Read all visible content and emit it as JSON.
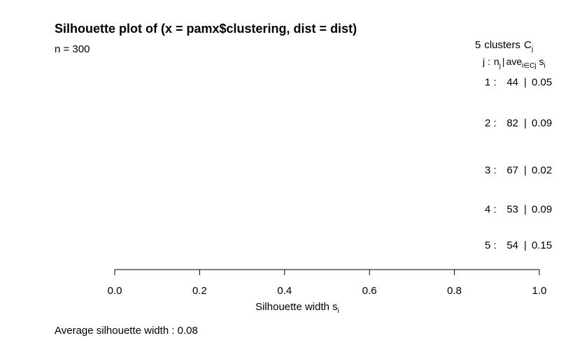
{
  "chart_data": {
    "type": "bar",
    "title": "Silhouette plot of (x = pamx$clustering, dist = dist)",
    "n_label": "n = 300",
    "legend_header": {
      "count": "5",
      "clusters_word": "clusters",
      "c_symbol": "C",
      "c_subscript": "j",
      "j_label": "j :",
      "n_symbol": "n",
      "n_subscript": "j",
      "sep": "|",
      "ave_symbol": "ave",
      "ave_subscript": "i∈Cj",
      "s_symbol": "s",
      "s_subscript": "i"
    },
    "clusters": [
      {
        "index": "1 :",
        "size": "44",
        "sep": "|",
        "avg": "0.05"
      },
      {
        "index": "2 :",
        "size": "82",
        "sep": "|",
        "avg": "0.09"
      },
      {
        "index": "3 :",
        "size": "67",
        "sep": "|",
        "avg": "0.02"
      },
      {
        "index": "4 :",
        "size": "53",
        "sep": "|",
        "avg": "0.09"
      },
      {
        "index": "5 :",
        "size": "54",
        "sep": "|",
        "avg": "0.15"
      }
    ],
    "xlabel": "Silhouette width s",
    "xlabel_subscript": "i",
    "xlim": [
      0,
      1
    ],
    "xticks": [
      "0.0",
      "0.2",
      "0.4",
      "0.6",
      "0.8",
      "1.0"
    ],
    "footer": "Average silhouette width :  0.08"
  }
}
